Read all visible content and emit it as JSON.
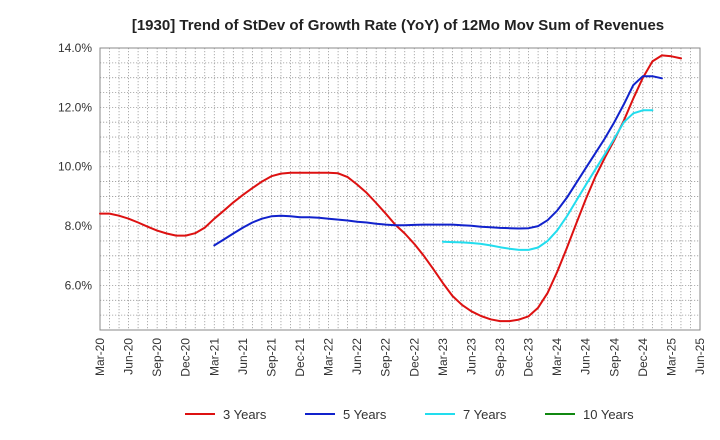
{
  "chart_data": {
    "type": "line",
    "title": "[1930]  Trend of StDev of Growth Rate (YoY) of 12Mo Mov Sum of Revenues",
    "xlabel": "",
    "ylabel": "",
    "ylim": [
      4.5,
      14.0
    ],
    "yticks": [
      6.0,
      8.0,
      10.0,
      12.0,
      14.0
    ],
    "ytick_labels": [
      "6.0%",
      "8.0%",
      "10.0%",
      "12.0%",
      "14.0%"
    ],
    "x_tick_labels": [
      "Mar-20",
      "Jun-20",
      "Sep-20",
      "Dec-20",
      "Mar-21",
      "Jun-21",
      "Sep-21",
      "Dec-21",
      "Mar-22",
      "Jun-22",
      "Sep-22",
      "Dec-22",
      "Mar-23",
      "Jun-23",
      "Sep-23",
      "Dec-23",
      "Mar-24",
      "Jun-24",
      "Sep-24",
      "Dec-24",
      "Mar-25",
      "Jun-25"
    ],
    "x_range_months": [
      0,
      63
    ],
    "grid": true,
    "legend_position": "bottom",
    "series": [
      {
        "name": "3 Years",
        "color": "#dd1111",
        "points": [
          [
            0,
            8.42
          ],
          [
            1,
            8.42
          ],
          [
            2,
            8.35
          ],
          [
            3,
            8.25
          ],
          [
            4,
            8.12
          ],
          [
            5,
            7.98
          ],
          [
            6,
            7.85
          ],
          [
            7,
            7.75
          ],
          [
            8,
            7.68
          ],
          [
            9,
            7.68
          ],
          [
            10,
            7.76
          ],
          [
            11,
            7.95
          ],
          [
            12,
            8.25
          ],
          [
            13,
            8.52
          ],
          [
            14,
            8.8
          ],
          [
            15,
            9.05
          ],
          [
            16,
            9.28
          ],
          [
            17,
            9.5
          ],
          [
            18,
            9.68
          ],
          [
            19,
            9.77
          ],
          [
            20,
            9.8
          ],
          [
            21,
            9.8
          ],
          [
            22,
            9.8
          ],
          [
            23,
            9.8
          ],
          [
            24,
            9.8
          ],
          [
            25,
            9.78
          ],
          [
            26,
            9.65
          ],
          [
            27,
            9.4
          ],
          [
            28,
            9.12
          ],
          [
            29,
            8.78
          ],
          [
            30,
            8.42
          ],
          [
            31,
            8.05
          ],
          [
            32,
            7.75
          ],
          [
            33,
            7.4
          ],
          [
            34,
            7.0
          ],
          [
            35,
            6.55
          ],
          [
            36,
            6.08
          ],
          [
            37,
            5.65
          ],
          [
            38,
            5.35
          ],
          [
            39,
            5.13
          ],
          [
            40,
            4.97
          ],
          [
            41,
            4.86
          ],
          [
            42,
            4.8
          ],
          [
            43,
            4.8
          ],
          [
            44,
            4.85
          ],
          [
            45,
            4.96
          ],
          [
            46,
            5.25
          ],
          [
            47,
            5.75
          ],
          [
            48,
            6.45
          ],
          [
            49,
            7.25
          ],
          [
            50,
            8.08
          ],
          [
            51,
            8.9
          ],
          [
            52,
            9.65
          ],
          [
            53,
            10.3
          ],
          [
            54,
            10.9
          ],
          [
            55,
            11.55
          ],
          [
            56,
            12.3
          ],
          [
            57,
            13.0
          ],
          [
            58,
            13.55
          ],
          [
            59,
            13.75
          ],
          [
            60,
            13.72
          ],
          [
            61,
            13.65
          ]
        ]
      },
      {
        "name": "5 Years",
        "color": "#1122cc",
        "points": [
          [
            12,
            7.35
          ],
          [
            13,
            7.55
          ],
          [
            14,
            7.75
          ],
          [
            15,
            7.95
          ],
          [
            16,
            8.12
          ],
          [
            17,
            8.25
          ],
          [
            18,
            8.33
          ],
          [
            19,
            8.35
          ],
          [
            20,
            8.33
          ],
          [
            21,
            8.3
          ],
          [
            22,
            8.3
          ],
          [
            23,
            8.28
          ],
          [
            24,
            8.25
          ],
          [
            25,
            8.22
          ],
          [
            26,
            8.19
          ],
          [
            27,
            8.15
          ],
          [
            28,
            8.12
          ],
          [
            29,
            8.08
          ],
          [
            30,
            8.05
          ],
          [
            31,
            8.03
          ],
          [
            32,
            8.03
          ],
          [
            33,
            8.04
          ],
          [
            34,
            8.05
          ],
          [
            35,
            8.05
          ],
          [
            36,
            8.05
          ],
          [
            37,
            8.05
          ],
          [
            38,
            8.03
          ],
          [
            39,
            8.01
          ],
          [
            40,
            7.98
          ],
          [
            41,
            7.96
          ],
          [
            42,
            7.94
          ],
          [
            43,
            7.93
          ],
          [
            44,
            7.92
          ],
          [
            45,
            7.93
          ],
          [
            46,
            8.0
          ],
          [
            47,
            8.2
          ],
          [
            48,
            8.52
          ],
          [
            49,
            8.95
          ],
          [
            50,
            9.45
          ],
          [
            51,
            9.95
          ],
          [
            52,
            10.45
          ],
          [
            53,
            10.95
          ],
          [
            54,
            11.5
          ],
          [
            55,
            12.1
          ],
          [
            56,
            12.75
          ],
          [
            57,
            13.05
          ],
          [
            58,
            13.05
          ],
          [
            59,
            12.98
          ]
        ]
      },
      {
        "name": "7 Years",
        "color": "#22ddee",
        "points": [
          [
            36,
            7.47
          ],
          [
            37,
            7.46
          ],
          [
            38,
            7.45
          ],
          [
            39,
            7.43
          ],
          [
            40,
            7.4
          ],
          [
            41,
            7.35
          ],
          [
            42,
            7.29
          ],
          [
            43,
            7.24
          ],
          [
            44,
            7.2
          ],
          [
            45,
            7.2
          ],
          [
            46,
            7.28
          ],
          [
            47,
            7.5
          ],
          [
            48,
            7.85
          ],
          [
            49,
            8.32
          ],
          [
            50,
            8.85
          ],
          [
            51,
            9.38
          ],
          [
            52,
            9.9
          ],
          [
            53,
            10.42
          ],
          [
            54,
            10.95
          ],
          [
            55,
            11.5
          ],
          [
            56,
            11.8
          ],
          [
            57,
            11.9
          ],
          [
            58,
            11.9
          ]
        ]
      },
      {
        "name": "10 Years",
        "color": "#118811",
        "points": []
      }
    ]
  }
}
